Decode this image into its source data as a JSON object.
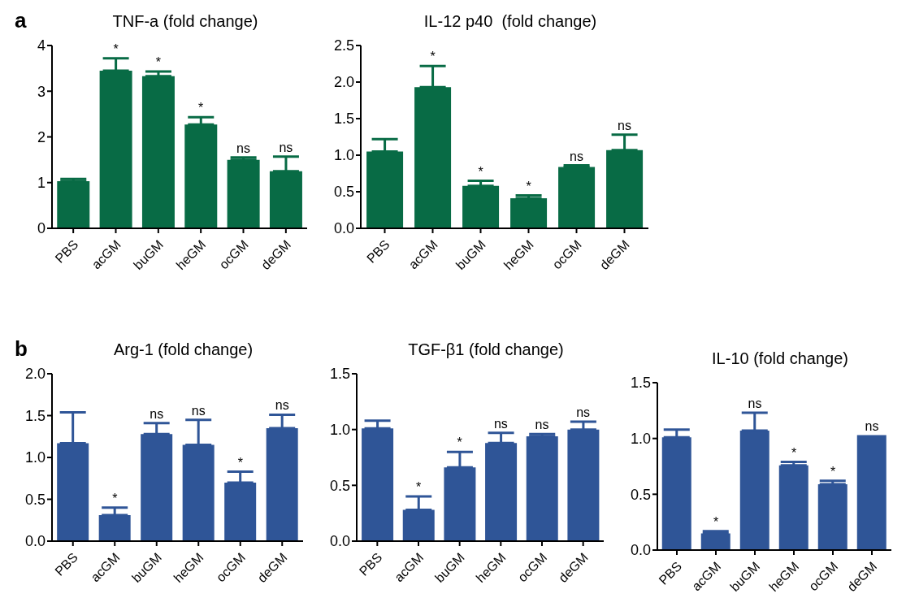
{
  "chart_data": [
    {
      "type": "bar",
      "title": "TNF-a (fold change)",
      "categories": [
        "PBS",
        "acGM",
        "buGM",
        "heGM",
        "ocGM",
        "deGM"
      ],
      "values": [
        1.03,
        3.45,
        3.33,
        2.27,
        1.5,
        1.25
      ],
      "errors": [
        [
          1.03,
          1.08
        ],
        [
          3.45,
          3.72
        ],
        [
          3.33,
          3.43
        ],
        [
          2.27,
          2.43
        ],
        [
          1.5,
          1.55
        ],
        [
          1.25,
          1.57
        ]
      ],
      "color": "#086b45",
      "ylim": [
        0,
        4
      ],
      "yticks": [
        0,
        1,
        2,
        3,
        4
      ],
      "grid": false,
      "annotations": [
        "a",
        {
          "text": "*",
          "x": "acGM",
          "y": 3.72
        },
        {
          "text": "*",
          "x": "buGM",
          "y": 3.43
        },
        {
          "text": "*",
          "x": "heGM",
          "y": 2.43
        },
        {
          "text": "ns",
          "x": "ocGM",
          "y": 1.55
        },
        {
          "text": "ns",
          "x": "deGM",
          "y": 1.57
        }
      ]
    },
    {
      "type": "bar",
      "title": "IL-12 p40  (fold change)",
      "categories": [
        "PBS",
        "acGM",
        "buGM",
        "heGM",
        "ocGM",
        "deGM"
      ],
      "values": [
        1.05,
        1.93,
        0.58,
        0.41,
        0.84,
        1.07
      ],
      "errors": [
        [
          1.05,
          1.22
        ],
        [
          1.93,
          2.22
        ],
        [
          0.58,
          0.65
        ],
        [
          0.41,
          0.45
        ],
        [
          0.84,
          0.86
        ],
        [
          1.07,
          1.28
        ]
      ],
      "color": "#086b45",
      "ylim": [
        0,
        2.5
      ],
      "yticks": [
        {
          "value": 0,
          "label": "0.0"
        },
        0.5,
        {
          "value": 1,
          "label": "1.0"
        },
        1.5,
        {
          "value": 2,
          "label": "2.0"
        },
        2.5
      ],
      "grid": false,
      "annotations": [
        {
          "text": "*",
          "x": "acGM",
          "y": 2.22
        },
        {
          "text": "*",
          "x": "buGM",
          "y": 0.65
        },
        {
          "text": "*",
          "x": "heGM",
          "y": 0.45
        },
        {
          "text": "ns",
          "x": "ocGM",
          "y": 0.86
        },
        {
          "text": "ns",
          "x": "deGM",
          "y": 1.28
        }
      ]
    },
    {
      "type": "bar",
      "title": "Arg-1 (fold change)",
      "categories": [
        "PBS",
        "acGM",
        "buGM",
        "heGM",
        "ocGM",
        "deGM"
      ],
      "values": [
        1.17,
        0.31,
        1.28,
        1.15,
        0.7,
        1.35
      ],
      "errors": [
        [
          1.17,
          1.54
        ],
        [
          0.31,
          0.4
        ],
        [
          1.28,
          1.41
        ],
        [
          1.15,
          1.45
        ],
        [
          0.7,
          0.83
        ],
        [
          1.35,
          1.51
        ]
      ],
      "color": "#2f5597",
      "ylim": [
        0,
        2
      ],
      "yticks": [
        {
          "value": 0,
          "label": "0.0"
        },
        0.5,
        {
          "value": 1,
          "label": "1.0"
        },
        1.5,
        {
          "value": 2,
          "label": "2.0"
        }
      ],
      "grid": false,
      "annotations": [
        "b",
        {
          "text": "*",
          "x": "acGM",
          "y": 0.4
        },
        {
          "text": "ns",
          "x": "buGM",
          "y": 1.41
        },
        {
          "text": "ns",
          "x": "heGM",
          "y": 1.45
        },
        {
          "text": "*",
          "x": "ocGM",
          "y": 0.83
        },
        {
          "text": "ns",
          "x": "deGM",
          "y": 1.51
        }
      ]
    },
    {
      "type": "bar",
      "title": "TGF-β1 (fold change)",
      "categories": [
        "PBS",
        "acGM",
        "buGM",
        "heGM",
        "ocGM",
        "deGM"
      ],
      "values": [
        1.01,
        0.28,
        0.66,
        0.88,
        0.94,
        1.0
      ],
      "errors": [
        [
          1.01,
          1.08
        ],
        [
          0.28,
          0.4
        ],
        [
          0.66,
          0.8
        ],
        [
          0.88,
          0.97
        ],
        [
          0.94,
          0.96
        ],
        [
          1.0,
          1.07
        ]
      ],
      "color": "#2f5597",
      "ylim": [
        0,
        1.5
      ],
      "yticks": [
        {
          "value": 0,
          "label": "0.0"
        },
        0.5,
        {
          "value": 1,
          "label": "1.0"
        },
        1.5
      ],
      "grid": false,
      "annotations": [
        {
          "text": "*",
          "x": "acGM",
          "y": 0.4
        },
        {
          "text": "*",
          "x": "buGM",
          "y": 0.8
        },
        {
          "text": "ns",
          "x": "heGM",
          "y": 0.97
        },
        {
          "text": "ns",
          "x": "ocGM",
          "y": 0.96
        },
        {
          "text": "ns",
          "x": "deGM",
          "y": 1.07
        }
      ]
    },
    {
      "type": "bar",
      "title": "IL-10 (fold change)",
      "categories": [
        "PBS",
        "acGM",
        "buGM",
        "heGM",
        "ocGM",
        "deGM"
      ],
      "values": [
        1.01,
        0.15,
        1.07,
        0.76,
        0.59,
        1.03
      ],
      "errors": [
        [
          1.01,
          1.08
        ],
        [
          0.15,
          0.17
        ],
        [
          1.07,
          1.23
        ],
        [
          0.76,
          0.79
        ],
        [
          0.59,
          0.62
        ],
        null
      ],
      "color": "#2f5597",
      "ylim": [
        0,
        1.5
      ],
      "yticks": [
        {
          "value": 0,
          "label": "0.0"
        },
        0.5,
        {
          "value": 1,
          "label": "1.0"
        },
        1.5
      ],
      "grid": false,
      "annotations": [
        {
          "text": "*",
          "x": "acGM",
          "y": 0.17
        },
        {
          "text": "ns",
          "x": "buGM",
          "y": 1.23
        },
        {
          "text": "*",
          "x": "heGM",
          "y": 0.79
        },
        {
          "text": "*",
          "x": "ocGM",
          "y": 0.62
        },
        {
          "text": "ns",
          "x": "deGM",
          "y": 1.03
        }
      ]
    }
  ]
}
